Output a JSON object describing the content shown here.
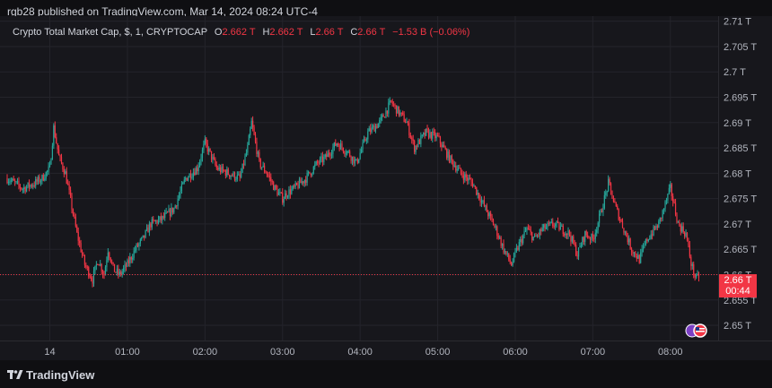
{
  "header": {
    "published": "rgb28 published on TradingView.com, Mar 14, 2024 08:24 UTC-4"
  },
  "legend": {
    "symbol": "Crypto Total Market Cap, $, 1, CRYPTOCAP",
    "o_label": "O",
    "o_value": "2.662 T",
    "h_label": "H",
    "h_value": "2.662 T",
    "l_label": "L",
    "l_value": "2.66 T",
    "c_label": "C",
    "c_value": "2.66 T",
    "change": "−1.53 B (−0.06%)"
  },
  "price_tag": {
    "price": "2.66 T",
    "countdown": "00:44"
  },
  "footer": {
    "logo_text": "TradingView"
  },
  "icons": {
    "logo": "tradingview-logo-icon",
    "flag": "us-flag-icon"
  },
  "colors": {
    "up": "#26a69a",
    "down": "#f23645",
    "grid": "#24242b",
    "background": "#17171c",
    "axis_text": "#b2b5be"
  },
  "chart_data": {
    "type": "line",
    "title": "Crypto Total Market Cap, $, 1, CRYPTOCAP",
    "xlabel": "",
    "ylabel": "",
    "y_unit": "T",
    "ylim": [
      2.647,
      2.711
    ],
    "y_ticks": [
      "2.71 T",
      "2.705 T",
      "2.7 T",
      "2.695 T",
      "2.69 T",
      "2.685 T",
      "2.68 T",
      "2.675 T",
      "2.67 T",
      "2.665 T",
      "2.66 T",
      "2.655 T",
      "2.65 T"
    ],
    "y_tick_values": [
      2.71,
      2.705,
      2.7,
      2.695,
      2.69,
      2.685,
      2.68,
      2.675,
      2.67,
      2.665,
      2.66,
      2.655,
      2.65
    ],
    "x_ticks": [
      "14",
      "01:00",
      "02:00",
      "03:00",
      "04:00",
      "05:00",
      "06:00",
      "07:00",
      "08:00"
    ],
    "x_tick_hours": [
      0,
      1,
      2,
      3,
      4,
      5,
      6,
      7,
      8
    ],
    "xlim_hours": [
      -0.55,
      8.5
    ],
    "grid": true,
    "last_price": 2.66,
    "series": [
      {
        "x_hours": [
          -0.55,
          -0.45,
          -0.35,
          -0.2,
          -0.1,
          0.0,
          0.05,
          0.12,
          0.2,
          0.25,
          0.35,
          0.45,
          0.55,
          0.62,
          0.7,
          0.75,
          0.82,
          0.9,
          1.0,
          1.1,
          1.2,
          1.3,
          1.45,
          1.6,
          1.75,
          1.9,
          2.0,
          2.15,
          2.3,
          2.45,
          2.55,
          2.6,
          2.7,
          2.8,
          2.9,
          3.0,
          3.05,
          3.15,
          3.3,
          3.45,
          3.55,
          3.7,
          3.85,
          3.95,
          4.1,
          4.25,
          4.4,
          4.5,
          4.6,
          4.7,
          4.85,
          5.0,
          5.15,
          5.3,
          5.45,
          5.55,
          5.65,
          5.75,
          5.85,
          5.95,
          6.05,
          6.15,
          6.25,
          6.35,
          6.5,
          6.6,
          6.7,
          6.8,
          6.9,
          7.0,
          7.1,
          7.2,
          7.3,
          7.4,
          7.5,
          7.6,
          7.7,
          7.85,
          8.0,
          8.1,
          8.2,
          8.27,
          8.33,
          8.38
        ],
        "values": [
          2.679,
          2.678,
          2.677,
          2.678,
          2.679,
          2.681,
          2.689,
          2.683,
          2.68,
          2.676,
          2.668,
          2.662,
          2.659,
          2.663,
          2.66,
          2.665,
          2.661,
          2.66,
          2.662,
          2.665,
          2.667,
          2.67,
          2.671,
          2.673,
          2.679,
          2.681,
          2.686,
          2.681,
          2.68,
          2.679,
          2.685,
          2.69,
          2.682,
          2.68,
          2.677,
          2.675,
          2.676,
          2.677,
          2.679,
          2.682,
          2.683,
          2.686,
          2.684,
          2.682,
          2.688,
          2.69,
          2.694,
          2.692,
          2.69,
          2.685,
          2.688,
          2.687,
          2.683,
          2.68,
          2.678,
          2.675,
          2.672,
          2.669,
          2.665,
          2.662,
          2.666,
          2.669,
          2.667,
          2.669,
          2.67,
          2.669,
          2.668,
          2.664,
          2.668,
          2.667,
          2.672,
          2.678,
          2.673,
          2.669,
          2.665,
          2.663,
          2.667,
          2.67,
          2.677,
          2.67,
          2.668,
          2.662,
          2.659,
          2.66
        ]
      }
    ]
  }
}
